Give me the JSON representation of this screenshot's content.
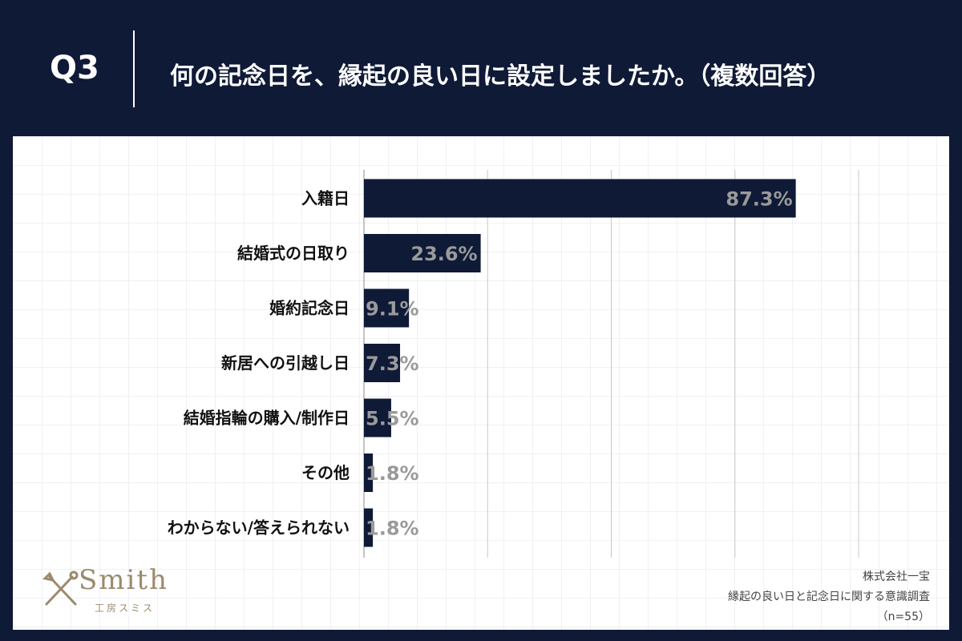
{
  "header": {
    "qnum": "Q3",
    "question": "何の記念日を、縁起の良い日に設定しましたか。（複数回答）"
  },
  "chart_data": {
    "type": "bar",
    "orientation": "horizontal",
    "categories": [
      "入籍日",
      "結婚式の日取り",
      "婚約記念日",
      "新居への引越し日",
      "結婚指輪の購入/制作日",
      "その他",
      "わからない/答えられない"
    ],
    "values": [
      87.3,
      23.6,
      9.1,
      7.3,
      5.5,
      1.8,
      1.8
    ],
    "value_labels": [
      "87.3%",
      "23.6%",
      "9.1%",
      "7.3%",
      "5.5%",
      "1.8%",
      "1.8%"
    ],
    "unit": "%",
    "xlim": [
      0,
      100
    ],
    "grid": true,
    "colors": {
      "bar": "#0f1a37",
      "value_label": "#9a9a9a",
      "grid": "#c8c8c8"
    }
  },
  "logo": {
    "name": "Smith",
    "subtitle": "工房スミス"
  },
  "source": {
    "company": "株式会社一宝",
    "survey": "縁起の良い日と記念日に関する意識調査",
    "sample": "（n=55）"
  }
}
